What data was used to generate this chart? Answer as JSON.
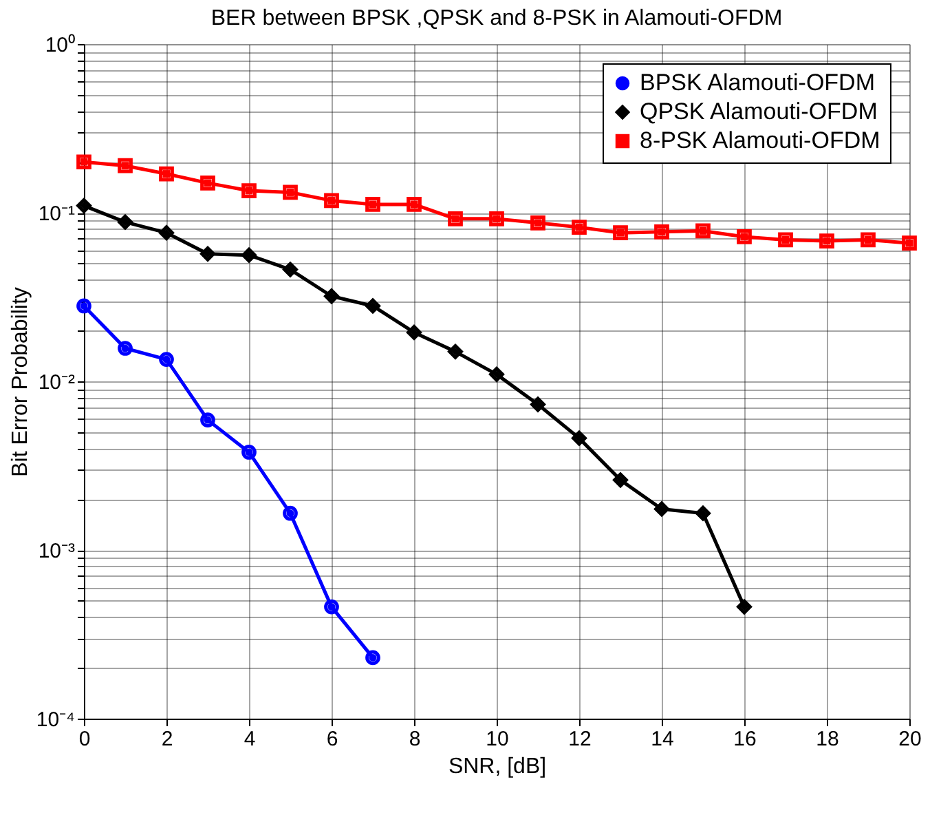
{
  "chart_data": {
    "type": "line",
    "title": "BER between BPSK ,QPSK and 8-PSK in Alamouti-OFDM",
    "xlabel": "SNR, [dB]",
    "ylabel": "Bit Error Probability",
    "log": "y",
    "grid": true,
    "legend": "top right",
    "line_style": "solid",
    "xlim": [
      0,
      20
    ],
    "xticks": [
      0,
      2,
      4,
      6,
      8,
      10,
      12,
      14,
      16,
      18,
      20
    ],
    "ylim": [
      0.0001,
      1
    ],
    "yticks": [
      {
        "value": 0.0001,
        "label": "10⁻⁴"
      },
      {
        "value": 0.0002,
        "label": null
      },
      {
        "value": 0.0003,
        "label": null
      },
      {
        "value": 0.0004,
        "label": null
      },
      {
        "value": 0.0005,
        "label": null
      },
      {
        "value": 0.0006,
        "label": null
      },
      {
        "value": 0.0007,
        "label": null
      },
      {
        "value": 0.0008,
        "label": null
      },
      {
        "value": 0.0009,
        "label": null
      },
      {
        "value": 0.001,
        "label": "10⁻³"
      },
      {
        "value": 0.002,
        "label": null
      },
      {
        "value": 0.003,
        "label": null
      },
      {
        "value": 0.004,
        "label": null
      },
      {
        "value": 0.005,
        "label": null
      },
      {
        "value": 0.006,
        "label": null
      },
      {
        "value": 0.007,
        "label": null
      },
      {
        "value": 0.008,
        "label": null
      },
      {
        "value": 0.009,
        "label": null
      },
      {
        "value": 0.01,
        "label": "10⁻²"
      },
      {
        "value": 0.02,
        "label": null
      },
      {
        "value": 0.03,
        "label": null
      },
      {
        "value": 0.04,
        "label": null
      },
      {
        "value": 0.05,
        "label": null
      },
      {
        "value": 0.06,
        "label": null
      },
      {
        "value": 0.07,
        "label": null
      },
      {
        "value": 0.08,
        "label": null
      },
      {
        "value": 0.09,
        "label": null
      },
      {
        "value": 0.1,
        "label": "10⁻¹"
      },
      {
        "value": 0.2,
        "label": null
      },
      {
        "value": 0.3,
        "label": null
      },
      {
        "value": 0.4,
        "label": null
      },
      {
        "value": 0.5,
        "label": null
      },
      {
        "value": 0.6,
        "label": null
      },
      {
        "value": 0.7,
        "label": null
      },
      {
        "value": 0.8,
        "label": null
      },
      {
        "value": 0.9,
        "label": null
      },
      {
        "value": 1,
        "label": "10⁰"
      }
    ],
    "series": [
      {
        "name": "BPSK Alamouti-OFDM",
        "color": "#0000ff",
        "marker": "circle",
        "x": [
          0,
          1,
          2,
          3,
          4,
          5,
          6,
          7
        ],
        "values": [
          0.028,
          0.0157,
          0.0135,
          0.0059,
          0.0038,
          0.00165,
          0.00046,
          0.00023
        ]
      },
      {
        "name": "QPSK Alamouti-OFDM",
        "color": "#000000",
        "marker": "diamond",
        "x": [
          0,
          1,
          2,
          3,
          4,
          5,
          6,
          7,
          8,
          9,
          10,
          11,
          12,
          13,
          14,
          15,
          16
        ],
        "values": [
          0.11,
          0.088,
          0.076,
          0.057,
          0.056,
          0.046,
          0.032,
          0.028,
          0.0195,
          0.015,
          0.011,
          0.0073,
          0.0046,
          0.0026,
          0.00175,
          0.00165,
          0.00046
        ]
      },
      {
        "name": "8-PSK Alamouti-OFDM",
        "color": "#ff0000",
        "marker": "square",
        "x": [
          0,
          1,
          2,
          3,
          4,
          5,
          6,
          7,
          8,
          9,
          10,
          11,
          12,
          13,
          14,
          15,
          16,
          17,
          18,
          19,
          20
        ],
        "values": [
          0.2,
          0.19,
          0.17,
          0.15,
          0.135,
          0.132,
          0.118,
          0.112,
          0.112,
          0.092,
          0.092,
          0.087,
          0.082,
          0.076,
          0.077,
          0.078,
          0.072,
          0.069,
          0.068,
          0.069,
          0.066
        ]
      }
    ]
  }
}
